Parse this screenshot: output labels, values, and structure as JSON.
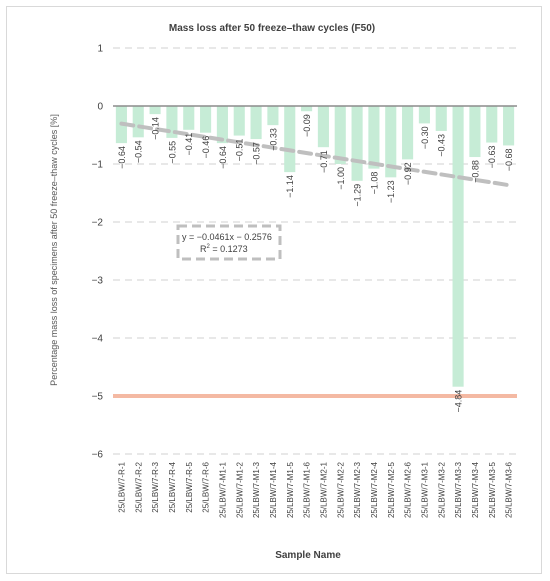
{
  "chart_data": {
    "type": "bar",
    "title": "Mass loss after 50 freeze–thaw cycles (F50)",
    "xlabel": "Sample Name",
    "ylabel": "Percentage mass loss of specimens after 50 freeze–thaw cycles [%]",
    "ylim": [
      -6,
      1
    ],
    "yticks": [
      1,
      0,
      -1,
      -2,
      -3,
      -4,
      -5,
      -6
    ],
    "ytick_labels": [
      "1",
      "0",
      "−1",
      "−2",
      "−3",
      "−4",
      "−5",
      "−6"
    ],
    "grid": true,
    "categories": [
      "25/LBW/7-R-1",
      "25/LBW/7-R-2",
      "25/LBW/7-R-3",
      "25/LBW/7-R-4",
      "25/LBW/7-R-5",
      "25/LBW/7-R-6",
      "25/LBW/7-M1-1",
      "25/LBW/7-M1-2",
      "25/LBW/7-M1-3",
      "25/LBW/7-M1-4",
      "25/LBW/7-M1-5",
      "25/LBW/7-M1-6",
      "25/LBW/7-M2-1",
      "25/LBW/7-M2-2",
      "25/LBW/7-M2-3",
      "25/LBW/7-M2-4",
      "25/LBW/7-M2-5",
      "25/LBW/7-M2-6",
      "25/LBW/7-M3-1",
      "25/LBW/7-M3-2",
      "25/LBW/7-M3-3",
      "25/LBW/7-M3-4",
      "25/LBW/7-M3-5",
      "25/LBW/7-M3-6"
    ],
    "values": [
      -0.64,
      -0.54,
      -0.14,
      -0.55,
      -0.41,
      -0.46,
      -0.64,
      -0.51,
      -0.57,
      -0.33,
      -1.14,
      -0.09,
      -0.71,
      -1.0,
      -1.29,
      -1.08,
      -1.23,
      -0.92,
      -0.3,
      -0.43,
      -4.84,
      -0.88,
      -0.63,
      -0.68
    ],
    "value_labels": [
      "−0.64",
      "−0.54",
      "−0.14",
      "−0.55",
      "−0.41",
      "−0.46",
      "−0.64",
      "−0.51",
      "−0.57",
      "−0.33",
      "−1.14",
      "−0.09",
      "−0.71",
      "−1.00",
      "−1.29",
      "−1.08",
      "−1.23",
      "−0.92",
      "−0.30",
      "−0.43",
      "−4.84",
      "−0.88",
      "−0.63",
      "−0.68"
    ],
    "reference_line": {
      "y": -5
    },
    "trendline": {
      "slope": -0.0461,
      "intercept": -0.2576,
      "equation": "y = −0.0461x − 0.2576",
      "r2_label": "R",
      "r2_exponent": "2",
      "r2_value": " = 0.1273"
    },
    "colors": {
      "bar": "#c6ecd6",
      "trend": "#bfbfbf",
      "reference": "#f4b9a3",
      "grid": "#d0d0d0",
      "text": "#404040"
    }
  }
}
